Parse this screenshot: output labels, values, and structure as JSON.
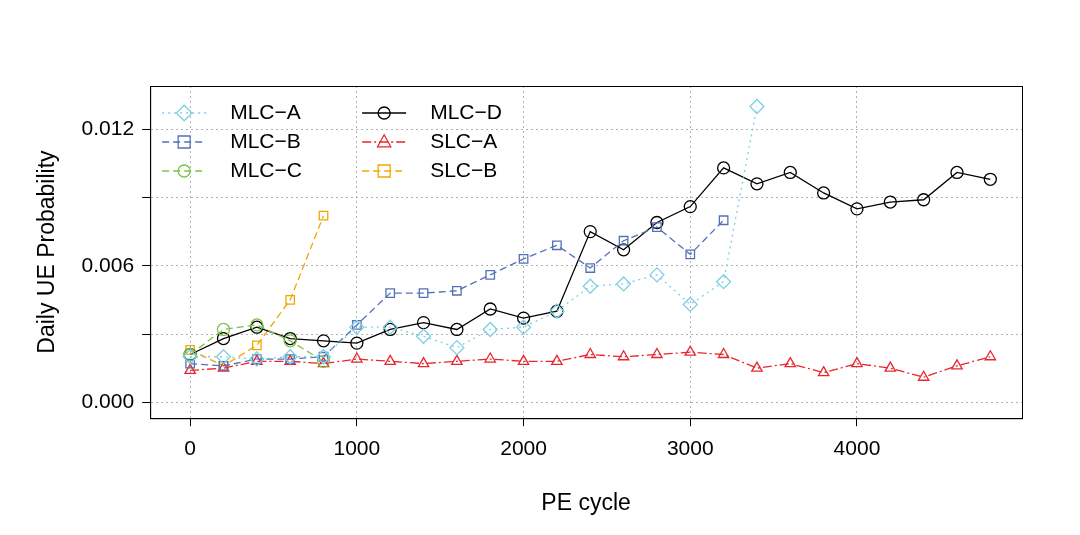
{
  "chart_data": {
    "type": "line",
    "x_label": "PE cycle",
    "y_label": "Daily UE Probability",
    "x": [
      0,
      200,
      400,
      600,
      800,
      1000,
      1200,
      1400,
      1600,
      1800,
      2000,
      2200,
      2400,
      2600,
      2800,
      3000,
      3200,
      3400,
      3600,
      3800,
      4000,
      4200,
      4400,
      4600,
      4800
    ],
    "xlim": [
      -240,
      4990
    ],
    "xticks": [
      0,
      1000,
      2000,
      3000,
      4000
    ],
    "ylim": [
      -0.0007,
      0.0139
    ],
    "yticks": [
      {
        "value": 0,
        "label": "0.000"
      },
      {
        "value": 0.003,
        "label": null
      },
      {
        "value": 0.006,
        "label": "0.006"
      },
      {
        "value": 0.009,
        "label": null
      },
      {
        "value": 0.012,
        "label": "0.012"
      }
    ],
    "grid": true,
    "legend": "top-left",
    "series": [
      {
        "name": "MLC−A",
        "color": "#7fcfe3",
        "marker": "diamond",
        "line_style": "dotted",
        "values": [
          0.002,
          0.002,
          0.0019,
          0.002,
          0.002,
          0.0033,
          0.0033,
          0.0029,
          0.0024,
          0.0032,
          0.0033,
          0.004,
          0.0051,
          0.0052,
          0.0056,
          0.0043,
          0.0053,
          0.013,
          null,
          null,
          null,
          null,
          null,
          null,
          null
        ]
      },
      {
        "name": "MLC−B",
        "color": "#5470b8",
        "marker": "square",
        "line_style": "dashed",
        "values": [
          0.0017,
          0.0016,
          0.0019,
          0.0019,
          0.002,
          0.0034,
          0.0048,
          0.0048,
          0.0049,
          0.0056,
          0.0063,
          0.0069,
          0.0059,
          0.0071,
          0.0077,
          0.0065,
          0.008,
          null,
          null,
          null,
          null,
          null,
          null,
          null,
          null
        ]
      },
      {
        "name": "MLC−C",
        "color": "#7dc24a",
        "marker": "circle",
        "line_style": "dashed",
        "values": [
          0.0021,
          0.0032,
          0.0034,
          0.0027,
          0.0018,
          null,
          null,
          null,
          null,
          null,
          null,
          null,
          null,
          null,
          null,
          null,
          null,
          null,
          null,
          null,
          null,
          null,
          null,
          null,
          null
        ]
      },
      {
        "name": "MLC−D",
        "color": "#000000",
        "marker": "circle",
        "line_style": "solid",
        "values": [
          0.0021,
          0.0028,
          0.0033,
          0.0028,
          0.0027,
          0.0026,
          0.0032,
          0.0035,
          0.0032,
          0.0041,
          0.0037,
          0.004,
          0.0075,
          0.0067,
          0.0079,
          0.0086,
          0.0103,
          0.0096,
          0.0101,
          0.0092,
          0.0085,
          0.0088,
          0.0089,
          0.0101,
          0.0098
        ]
      },
      {
        "name": "SLC−A",
        "color": "#e8262e",
        "marker": "triangle",
        "line_style": "dashdot",
        "values": [
          0.0014,
          0.0015,
          0.0018,
          0.0018,
          0.0017,
          0.0019,
          0.0018,
          0.0017,
          0.0018,
          0.0019,
          0.0018,
          0.0018,
          0.0021,
          0.002,
          0.0021,
          0.0022,
          0.0021,
          0.0015,
          0.0017,
          0.0013,
          0.0017,
          0.0015,
          0.0011,
          0.0016,
          0.002
        ]
      },
      {
        "name": "SLC−B",
        "color": "#f0a800",
        "marker": "square",
        "line_style": "dashed",
        "values": [
          0.0023,
          0.0016,
          0.0025,
          0.0045,
          0.0082,
          null,
          null,
          null,
          null,
          null,
          null,
          null,
          null,
          null,
          null,
          null,
          null,
          null,
          null,
          null,
          null,
          null,
          null,
          null,
          null
        ]
      }
    ]
  }
}
